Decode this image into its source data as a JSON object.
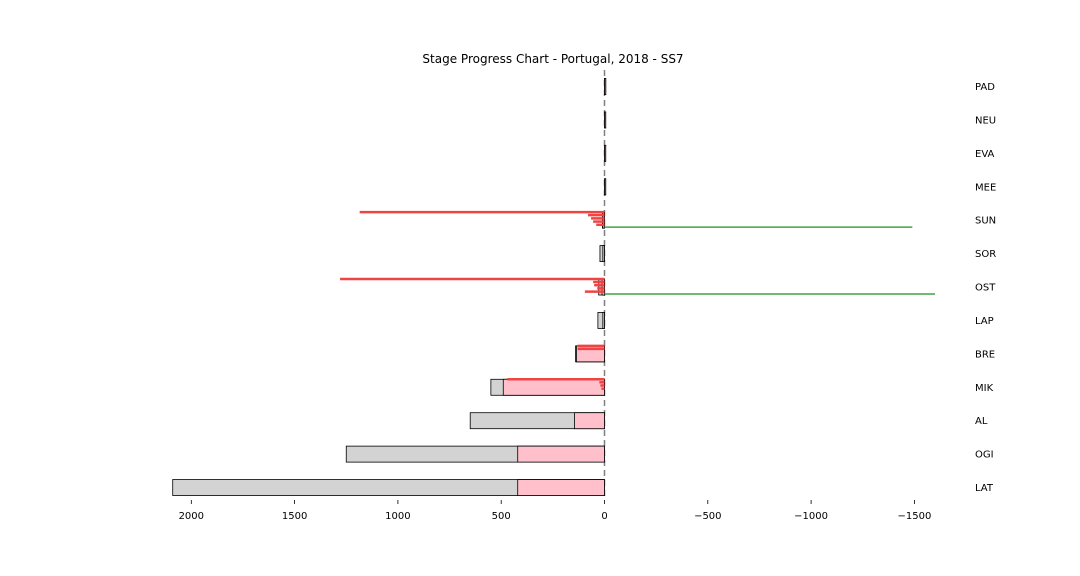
{
  "chart_data": {
    "type": "bar",
    "title": "Stage Progress Chart - Portugal, 2018 - SS7",
    "xlabel": "",
    "ylabel": "",
    "xlim": [
      2100,
      -1600
    ],
    "x_inverted": true,
    "grid": false,
    "legend": "none",
    "zero_line": {
      "x": 0,
      "style": "dashed",
      "color": "#808080"
    },
    "x_ticks": [
      2000,
      1500,
      1000,
      500,
      0,
      -500,
      -1000,
      -1500
    ],
    "x_tick_labels": [
      "2000",
      "1500",
      "1000",
      "500",
      "0",
      "−500",
      "−1000",
      "−1500"
    ],
    "colors": {
      "overall_bar": "#d3d3d3",
      "stage_bar": "#ffc0cb",
      "loss_line": "#ee4444",
      "gain_line": "#44a244",
      "edge": "#000000"
    },
    "categories": [
      "PAD",
      "NEU",
      "EVA",
      "MEE",
      "SUN",
      "SOR",
      "OST",
      "LAP",
      "BRE",
      "MIK",
      "AL",
      "OGI",
      "LAT"
    ],
    "overall_gap": [
      -6,
      -2,
      0,
      0,
      10,
      22,
      28,
      32,
      140,
      550,
      650,
      1250,
      2090
    ],
    "stage_gap": [
      -6,
      0,
      -2,
      -2,
      8,
      8,
      12,
      8,
      135,
      490,
      145,
      420,
      420
    ],
    "cumulative_loss": [
      {
        "label": "SUN",
        "value": 1185
      },
      {
        "label": "OST",
        "value": 1280
      },
      {
        "label": "BRE",
        "value": 130
      },
      {
        "label": "MIK",
        "value": 470
      }
    ],
    "split_loss": [
      {
        "label": "SUN",
        "values": [
          80,
          65,
          55,
          40
        ]
      },
      {
        "label": "OST",
        "values": [
          55,
          50,
          35,
          95
        ]
      },
      {
        "label": "BRE",
        "values": [
          130
        ]
      },
      {
        "label": "MIK",
        "values": [
          25,
          20,
          15
        ]
      }
    ],
    "cumulative_gain": [
      {
        "label": "SUN",
        "value": -1490
      },
      {
        "label": "OST",
        "value": -1600
      }
    ]
  }
}
